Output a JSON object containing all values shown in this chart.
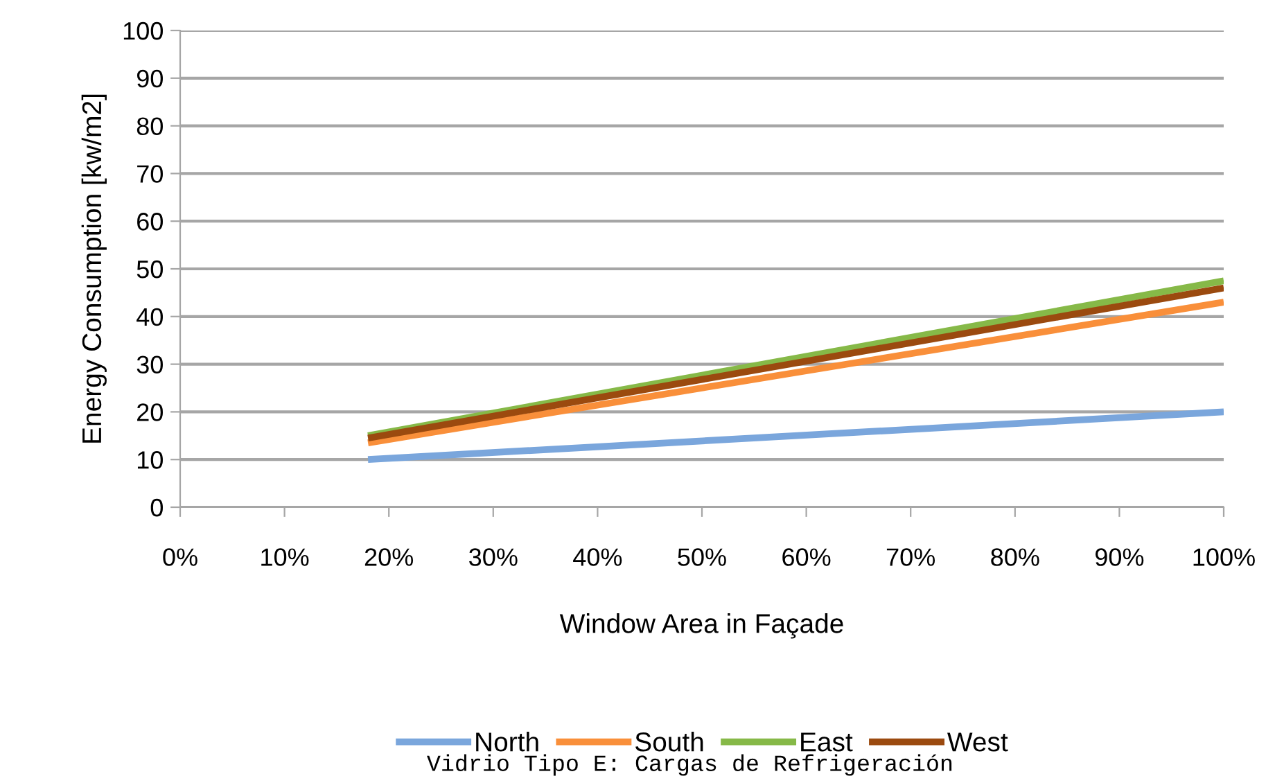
{
  "chart_data": {
    "type": "line",
    "xlabel": "Window Area in Façade",
    "ylabel": "Energy Consumption [kw/m2]",
    "x": [
      18,
      100
    ],
    "series": [
      {
        "name": "North",
        "color": "#7aa6dc",
        "values": [
          10,
          20
        ]
      },
      {
        "name": "South",
        "color": "#f98f3a",
        "values": [
          13.5,
          43
        ]
      },
      {
        "name": "East",
        "color": "#86b948",
        "values": [
          15,
          47.5
        ]
      },
      {
        "name": "West",
        "color": "#9b4a0f",
        "values": [
          14.5,
          46
        ]
      }
    ],
    "xlim": [
      0,
      100
    ],
    "xticks": [
      {
        "value": 0,
        "label": "0%"
      },
      {
        "value": 10,
        "label": "10%"
      },
      {
        "value": 20,
        "label": "20%"
      },
      {
        "value": 30,
        "label": "30%"
      },
      {
        "value": 40,
        "label": "40%"
      },
      {
        "value": 50,
        "label": "50%"
      },
      {
        "value": 60,
        "label": "60%"
      },
      {
        "value": 70,
        "label": "70%"
      },
      {
        "value": 80,
        "label": "80%"
      },
      {
        "value": 90,
        "label": "90%"
      },
      {
        "value": 100,
        "label": "100%"
      }
    ],
    "ylim": [
      0,
      100
    ],
    "yticks": [
      0,
      10,
      20,
      30,
      40,
      50,
      60,
      70,
      80,
      90,
      100
    ],
    "grid": "y",
    "legend": "bottom",
    "marker": "none",
    "line_style": "solid",
    "annotations": [
      "Vidrio Tipo E: Cargas de Refrigeración"
    ]
  }
}
